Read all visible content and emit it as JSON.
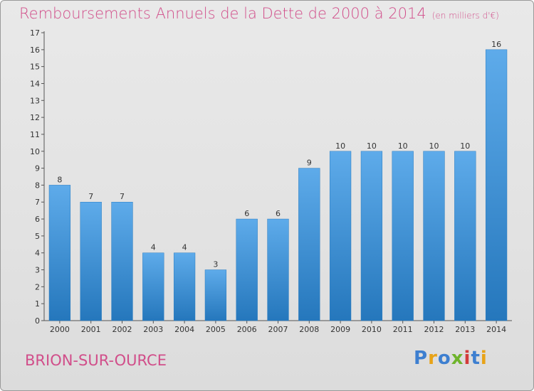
{
  "title": "Remboursements Annuels de la Dette de 2000 à 2014",
  "subtitle": "(en milliers d'€)",
  "town": "BRION-SUR-OURCE",
  "logo": {
    "letters": [
      "P",
      "r",
      "o",
      "x",
      "i",
      "t",
      "i"
    ],
    "colors": [
      "#3d7fd0",
      "#e8a317",
      "#3d7fd0",
      "#6fb42c",
      "#d23b3b",
      "#3d7fd0",
      "#e8a317"
    ]
  },
  "colors": {
    "bar": "#4a9be0",
    "bar_dark": "#2577bc",
    "title": "#d14e8a"
  },
  "chart_data": {
    "type": "bar",
    "categories": [
      "2000",
      "2001",
      "2002",
      "2003",
      "2004",
      "2005",
      "2006",
      "2007",
      "2008",
      "2009",
      "2010",
      "2011",
      "2012",
      "2013",
      "2014"
    ],
    "values": [
      8,
      7,
      7,
      4,
      4,
      3,
      6,
      6,
      9,
      10,
      10,
      10,
      10,
      10,
      16
    ],
    "title": "Remboursements Annuels de la Dette de 2000 à 2014",
    "xlabel": "",
    "ylabel": "",
    "ylim": [
      0,
      17
    ],
    "yticks": [
      0,
      1,
      2,
      3,
      4,
      5,
      6,
      7,
      8,
      9,
      10,
      11,
      12,
      13,
      14,
      15,
      16,
      17
    ],
    "grid": false,
    "data_labels": true
  }
}
